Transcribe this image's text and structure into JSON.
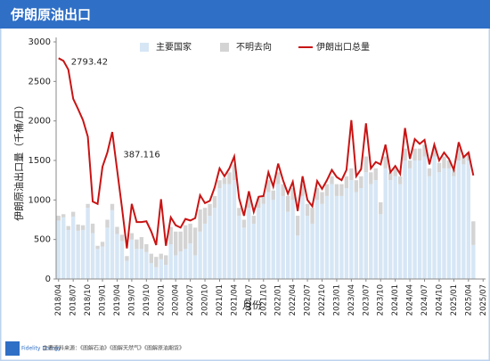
{
  "header": {
    "title": "伊朗原油出口"
  },
  "footer": {
    "brand": "Fidelity Energy",
    "source": "主要资料来源：《图解石油》《图解天然气》《图解原油期货》"
  },
  "chart_data": {
    "type": "stacked-bar-line",
    "ylabel": "伊朗原油出口量（千桶/日）",
    "xlabel": "月份",
    "ylim": [
      0,
      3000
    ],
    "yticks": [
      0,
      500,
      1000,
      1500,
      2000,
      2500,
      3000
    ],
    "grid": false,
    "legend": "top",
    "categories": [
      "2018/04",
      null,
      null,
      "2018/07",
      null,
      null,
      "2018/10",
      null,
      null,
      "2019/01",
      null,
      null,
      "2019/04",
      null,
      null,
      "2019/07",
      null,
      null,
      "2019/10",
      null,
      null,
      "2020/01",
      null,
      null,
      "2020/04",
      null,
      null,
      "2020/07",
      null,
      null,
      "2020/10",
      null,
      null,
      "2021/01",
      null,
      null,
      "2021/04",
      null,
      null,
      "2021/07",
      null,
      null,
      "2021/10",
      null,
      null,
      "2022/01",
      null,
      null,
      "2022/04",
      null,
      null,
      "2022/07",
      null,
      null,
      "2022/10",
      null,
      null,
      "2023/01",
      null,
      null,
      "2023/04",
      null,
      null,
      "2023/07",
      null,
      null,
      "2023/10",
      null,
      null,
      "2024/01",
      null,
      null,
      "2024/04",
      null,
      null,
      "2024/07",
      null,
      null,
      "2024/10",
      null,
      null,
      "2025/01",
      null,
      null,
      "2025/04",
      null,
      null,
      "2025/07"
    ],
    "series": [
      {
        "name": "主要国家",
        "kind": "bar",
        "color": "#d6e6f5",
        "values": [
          740,
          780,
          620,
          790,
          610,
          620,
          900,
          580,
          380,
          410,
          650,
          870,
          570,
          480,
          230,
          500,
          380,
          380,
          340,
          200,
          150,
          250,
          180,
          440,
          300,
          350,
          380,
          450,
          300,
          600,
          700,
          800,
          900,
          1150,
          1200,
          1200,
          1250,
          800,
          650,
          900,
          700,
          900,
          950,
          1100,
          1000,
          1200,
          1050,
          850,
          1000,
          550,
          1050,
          800,
          700,
          1000,
          950,
          1050,
          1200,
          1050,
          1050,
          1150,
          1250,
          1100,
          1150,
          1350,
          1200,
          1250,
          820,
          1400,
          1250,
          1300,
          1200,
          1500,
          1400,
          1500,
          1500,
          1550,
          1300,
          1550,
          1350,
          1400,
          1400,
          1300,
          1500,
          1450,
          1500,
          430,
          null,
          null
        ]
      },
      {
        "name": "不明去向",
        "kind": "bar",
        "color": "#d4d4d4",
        "values": [
          60,
          40,
          50,
          60,
          80,
          60,
          50,
          120,
          40,
          60,
          100,
          80,
          90,
          80,
          60,
          80,
          120,
          150,
          100,
          120,
          130,
          70,
          120,
          220,
          300,
          250,
          300,
          250,
          350,
          280,
          200,
          150,
          150,
          100,
          80,
          150,
          200,
          100,
          100,
          150,
          100,
          120,
          100,
          150,
          120,
          150,
          150,
          200,
          150,
          250,
          150,
          150,
          200,
          150,
          150,
          150,
          100,
          150,
          150,
          150,
          150,
          150,
          150,
          200,
          150,
          150,
          150,
          150,
          100,
          100,
          100,
          150,
          100,
          150,
          150,
          150,
          100,
          100,
          120,
          150,
          100,
          80,
          150,
          100,
          100,
          300,
          null,
          null
        ]
      },
      {
        "name": "伊朗出口总量",
        "kind": "line",
        "color": "#c81414",
        "values": [
          2793.42,
          2760,
          2650,
          2280,
          2150,
          2010,
          1800,
          980,
          950,
          1420,
          1600,
          1860,
          1380,
          900,
          387.116,
          950,
          720,
          720,
          730,
          600,
          430,
          1010,
          420,
          780,
          680,
          650,
          760,
          740,
          770,
          1060,
          960,
          990,
          1160,
          1400,
          1300,
          1400,
          1550,
          1020,
          800,
          1110,
          850,
          1040,
          1050,
          1350,
          1170,
          1460,
          1250,
          1080,
          1230,
          860,
          1300,
          1000,
          920,
          1240,
          1140,
          1250,
          1380,
          1290,
          1250,
          1380,
          2010,
          1300,
          1390,
          1970,
          1400,
          1480,
          1450,
          1700,
          1350,
          1430,
          1330,
          1910,
          1520,
          1770,
          1710,
          1760,
          1450,
          1700,
          1500,
          1600,
          1520,
          1380,
          1730,
          1540,
          1600,
          1310,
          null,
          null
        ]
      }
    ]
  }
}
